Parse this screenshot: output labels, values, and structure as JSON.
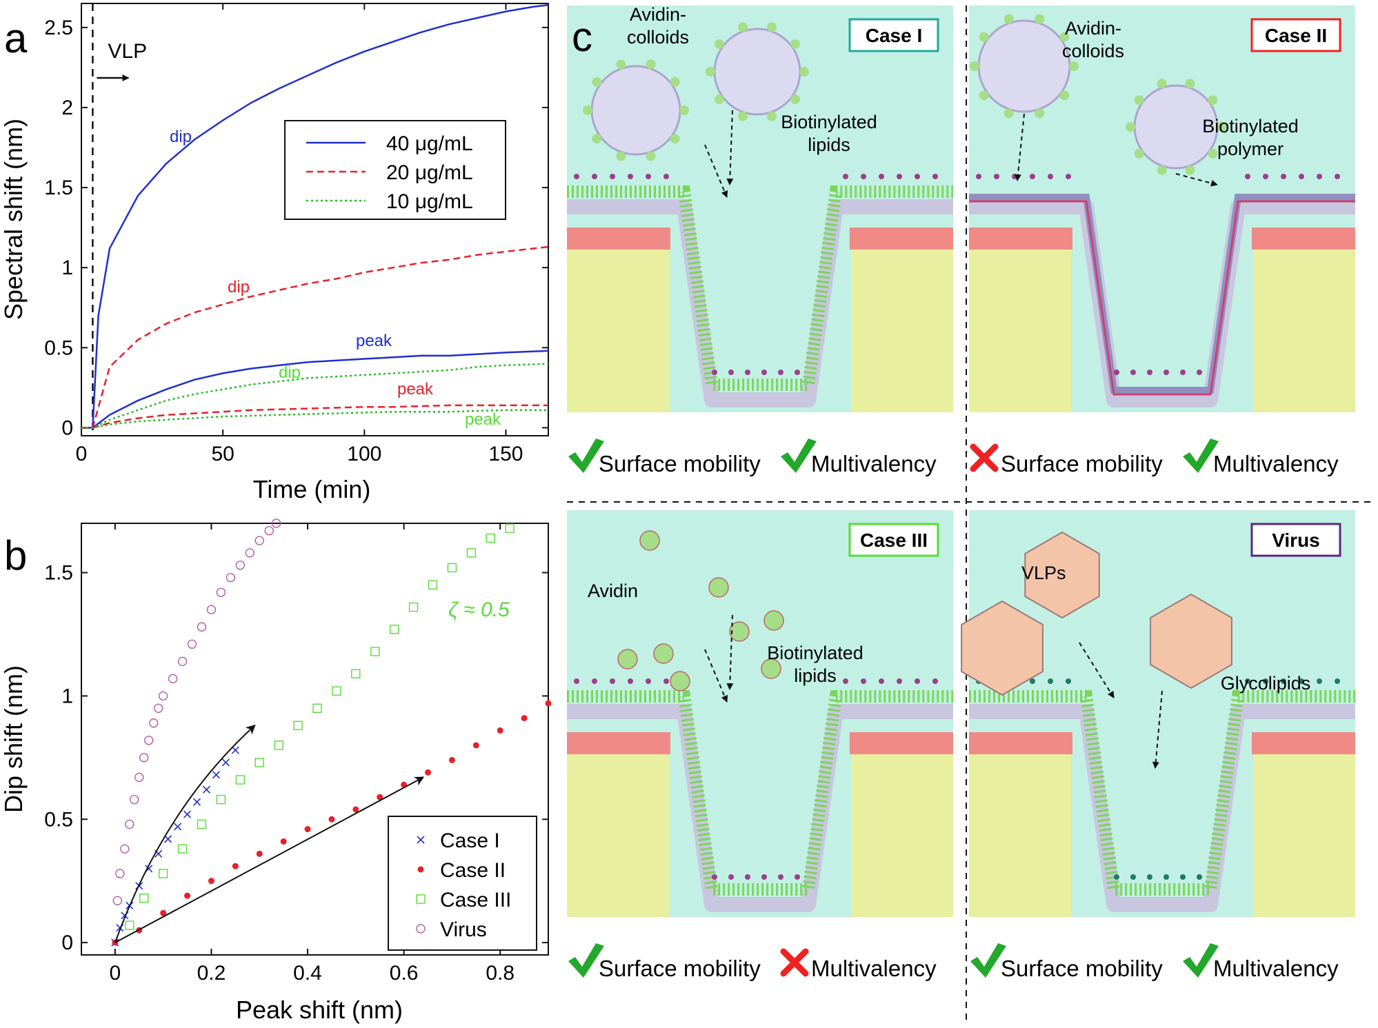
{
  "panels": {
    "a": "a",
    "b": "b",
    "c": "c"
  },
  "colors": {
    "blue": "#1f2fcf",
    "red": "#e8202a",
    "green": "#22bb22",
    "light_green": "#55dd33",
    "purple": "#b65aa8",
    "water": "#c2f0e4",
    "gold": "#e8f0a0",
    "salmon": "#ef8a86",
    "gray_layer": "#c9c6e0",
    "check": "#22a82a",
    "cross": "#ee2222"
  },
  "chart_data": [
    {
      "type": "line",
      "panel": "a",
      "xlabel": "Time (min)",
      "ylabel": "Spectral shift (nm)",
      "xlim": [
        0,
        165
      ],
      "ylim": [
        -0.05,
        2.65
      ],
      "xticks": [
        0,
        50,
        100,
        150
      ],
      "yticks": [
        0,
        0.5,
        1,
        1.5,
        2,
        2.5
      ],
      "xtick_labels": [
        "0",
        "50",
        "100",
        "150"
      ],
      "ytick_labels": [
        "0",
        "0.5",
        "1",
        "1.5",
        "2",
        "2.5"
      ],
      "marker_label": "VLP",
      "marker_x": 4,
      "legend_position": "top-right",
      "legend": [
        {
          "name": "40 μg/mL",
          "color": "#1f2fcf",
          "style": "solid"
        },
        {
          "name": "20 μg/mL",
          "color": "#e8202a",
          "style": "dashed"
        },
        {
          "name": "10 μg/mL",
          "color": "#22bb22",
          "style": "dotted"
        }
      ],
      "series": [
        {
          "name": "40 μg/mL dip",
          "label": "dip",
          "style": "solid",
          "color": "#1f2fcf",
          "x": [
            0,
            4,
            6,
            10,
            20,
            30,
            40,
            50,
            60,
            70,
            80,
            90,
            100,
            110,
            120,
            130,
            140,
            150,
            160,
            165
          ],
          "y": [
            0,
            0,
            0.7,
            1.12,
            1.45,
            1.65,
            1.8,
            1.92,
            2.03,
            2.12,
            2.2,
            2.28,
            2.35,
            2.41,
            2.47,
            2.52,
            2.56,
            2.6,
            2.63,
            2.64
          ]
        },
        {
          "name": "20 μg/mL dip",
          "label": "dip",
          "style": "dashed",
          "color": "#e8202a",
          "x": [
            0,
            4,
            10,
            20,
            30,
            40,
            50,
            60,
            70,
            80,
            90,
            100,
            110,
            120,
            130,
            140,
            150,
            165
          ],
          "y": [
            0,
            0,
            0.38,
            0.55,
            0.65,
            0.72,
            0.77,
            0.82,
            0.86,
            0.9,
            0.93,
            0.97,
            1.0,
            1.03,
            1.05,
            1.08,
            1.1,
            1.13
          ]
        },
        {
          "name": "40 μg/mL peak",
          "label": "peak",
          "style": "solid",
          "color": "#1f2fcf",
          "x": [
            0,
            4,
            10,
            20,
            30,
            40,
            50,
            60,
            70,
            80,
            90,
            100,
            110,
            120,
            130,
            140,
            150,
            165
          ],
          "y": [
            0,
            0,
            0.08,
            0.17,
            0.24,
            0.3,
            0.34,
            0.37,
            0.39,
            0.41,
            0.42,
            0.43,
            0.44,
            0.45,
            0.45,
            0.46,
            0.47,
            0.48
          ]
        },
        {
          "name": "10 μg/mL dip",
          "label": "dip",
          "style": "dotted",
          "color": "#22bb22",
          "x": [
            0,
            4,
            10,
            20,
            30,
            40,
            50,
            60,
            70,
            80,
            90,
            100,
            110,
            120,
            130,
            140,
            150,
            165
          ],
          "y": [
            0,
            0,
            0.05,
            0.11,
            0.17,
            0.21,
            0.24,
            0.27,
            0.29,
            0.31,
            0.32,
            0.33,
            0.34,
            0.35,
            0.36,
            0.38,
            0.39,
            0.4
          ]
        },
        {
          "name": "20 μg/mL peak",
          "label": "peak",
          "style": "dashed",
          "color": "#e8202a",
          "x": [
            0,
            4,
            10,
            20,
            30,
            40,
            50,
            60,
            70,
            80,
            90,
            100,
            110,
            120,
            130,
            140,
            150,
            165
          ],
          "y": [
            0,
            0,
            0.03,
            0.06,
            0.08,
            0.09,
            0.1,
            0.11,
            0.115,
            0.12,
            0.125,
            0.13,
            0.13,
            0.135,
            0.14,
            0.14,
            0.14,
            0.14
          ]
        },
        {
          "name": "10 μg/mL peak",
          "label": "peak",
          "style": "dotted",
          "color": "#22bb22",
          "x": [
            0,
            4,
            10,
            20,
            30,
            40,
            50,
            60,
            70,
            80,
            90,
            100,
            110,
            120,
            130,
            140,
            150,
            165
          ],
          "y": [
            0,
            0,
            0.02,
            0.04,
            0.05,
            0.06,
            0.07,
            0.075,
            0.08,
            0.085,
            0.09,
            0.095,
            0.1,
            0.1,
            0.1,
            0.105,
            0.11,
            0.11
          ]
        }
      ]
    },
    {
      "type": "scatter",
      "panel": "b",
      "xlabel": "Peak shift (nm)",
      "ylabel": "Dip shift (nm)",
      "xlim": [
        -0.07,
        0.9
      ],
      "ylim": [
        -0.05,
        1.7
      ],
      "xticks": [
        0,
        0.2,
        0.4,
        0.6,
        0.8
      ],
      "yticks": [
        0,
        0.5,
        1,
        1.5
      ],
      "xtick_labels": [
        "0",
        "0.2",
        "0.4",
        "0.6",
        "0.8"
      ],
      "ytick_labels": [
        "0",
        "0.5",
        "1",
        "1.5"
      ],
      "annotation": "ζ ≈ 0.5",
      "legend_position": "bottom-right",
      "legend": [
        {
          "name": "Case I",
          "marker": "x",
          "color": "#1f2fcf"
        },
        {
          "name": "Case II",
          "marker": "dot",
          "color": "#e8202a"
        },
        {
          "name": "Case III",
          "marker": "square",
          "color": "#55dd33"
        },
        {
          "name": "Virus",
          "marker": "circle",
          "color": "#b65aa8"
        }
      ],
      "series": [
        {
          "name": "Case I",
          "marker": "x",
          "color": "#1f2fcf",
          "x": [
            0,
            0.01,
            0.02,
            0.03,
            0.05,
            0.07,
            0.09,
            0.11,
            0.13,
            0.15,
            0.17,
            0.19,
            0.21,
            0.23,
            0.25
          ],
          "y": [
            0,
            0.06,
            0.11,
            0.15,
            0.23,
            0.3,
            0.36,
            0.42,
            0.47,
            0.52,
            0.57,
            0.62,
            0.68,
            0.73,
            0.78
          ]
        },
        {
          "name": "Case II",
          "marker": "dot",
          "color": "#e8202a",
          "x": [
            0,
            0.05,
            0.1,
            0.15,
            0.2,
            0.25,
            0.3,
            0.35,
            0.4,
            0.45,
            0.5,
            0.55,
            0.6,
            0.65,
            0.7,
            0.75,
            0.8,
            0.85,
            0.9
          ],
          "y": [
            0,
            0.05,
            0.12,
            0.19,
            0.25,
            0.31,
            0.36,
            0.41,
            0.46,
            0.5,
            0.54,
            0.59,
            0.64,
            0.69,
            0.74,
            0.8,
            0.86,
            0.91,
            0.97
          ]
        },
        {
          "name": "Case III",
          "marker": "square",
          "color": "#55dd33",
          "x": [
            0.03,
            0.06,
            0.1,
            0.14,
            0.18,
            0.22,
            0.26,
            0.3,
            0.34,
            0.38,
            0.42,
            0.46,
            0.5,
            0.54,
            0.58,
            0.62,
            0.66,
            0.7,
            0.74,
            0.78,
            0.82
          ],
          "y": [
            0.07,
            0.18,
            0.28,
            0.38,
            0.48,
            0.58,
            0.66,
            0.73,
            0.8,
            0.88,
            0.95,
            1.02,
            1.09,
            1.18,
            1.27,
            1.36,
            1.45,
            1.52,
            1.58,
            1.64,
            1.68
          ]
        },
        {
          "name": "Virus",
          "marker": "circle",
          "color": "#b65aa8",
          "x": [
            0.005,
            0.01,
            0.02,
            0.03,
            0.04,
            0.05,
            0.06,
            0.07,
            0.08,
            0.09,
            0.1,
            0.12,
            0.14,
            0.16,
            0.18,
            0.2,
            0.22,
            0.24,
            0.26,
            0.28,
            0.3,
            0.32,
            0.335
          ],
          "y": [
            0.17,
            0.28,
            0.38,
            0.48,
            0.58,
            0.67,
            0.75,
            0.82,
            0.89,
            0.95,
            1.0,
            1.07,
            1.14,
            1.21,
            1.28,
            1.35,
            1.42,
            1.48,
            1.53,
            1.58,
            1.63,
            1.67,
            1.7
          ]
        }
      ],
      "arrows": [
        {
          "name": "Case I",
          "from": [
            0,
            0
          ],
          "to": [
            0.29,
            0.88
          ],
          "curved": true
        },
        {
          "name": "Case II",
          "from": [
            0,
            0
          ],
          "to": [
            0.64,
            0.67
          ],
          "curved": false
        }
      ]
    }
  ],
  "schematics": [
    {
      "id": "case1",
      "box_label": "Case I",
      "box_color": "#22a8a0",
      "particle": "colloid",
      "layer": "bilayer",
      "head_color": "#9a3f8a",
      "labels": [
        "Avidin-\ncolloids",
        "Biotinylated\nlipids"
      ],
      "footer": [
        {
          "icon": "check",
          "text": "Surface mobility"
        },
        {
          "icon": "check",
          "text": "Multivalency"
        }
      ]
    },
    {
      "id": "case2",
      "box_label": "Case II",
      "box_color": "#ee2222",
      "particle": "colloid",
      "layer": "polymer",
      "head_color": "#9a3f8a",
      "labels": [
        "Avidin-\ncolloids",
        "Biotinylated\npolymer"
      ],
      "footer": [
        {
          "icon": "cross",
          "text": "Surface mobility"
        },
        {
          "icon": "check",
          "text": "Multivalency"
        }
      ]
    },
    {
      "id": "case3",
      "box_label": "Case III",
      "box_color": "#55dd33",
      "particle": "avidin",
      "layer": "bilayer",
      "head_color": "#9a3f8a",
      "labels": [
        "Avidin",
        "Biotinylated\nlipids"
      ],
      "footer": [
        {
          "icon": "check",
          "text": "Surface mobility"
        },
        {
          "icon": "cross",
          "text": "Multivalency"
        }
      ]
    },
    {
      "id": "virus",
      "box_label": "Virus",
      "box_color": "#5a2a7a",
      "particle": "vlp",
      "layer": "bilayer",
      "head_color": "#1f7a66",
      "labels": [
        "VLPs",
        "Glycolipids"
      ],
      "footer": [
        {
          "icon": "check",
          "text": "Surface mobility"
        },
        {
          "icon": "check",
          "text": "Multivalency"
        }
      ]
    }
  ]
}
